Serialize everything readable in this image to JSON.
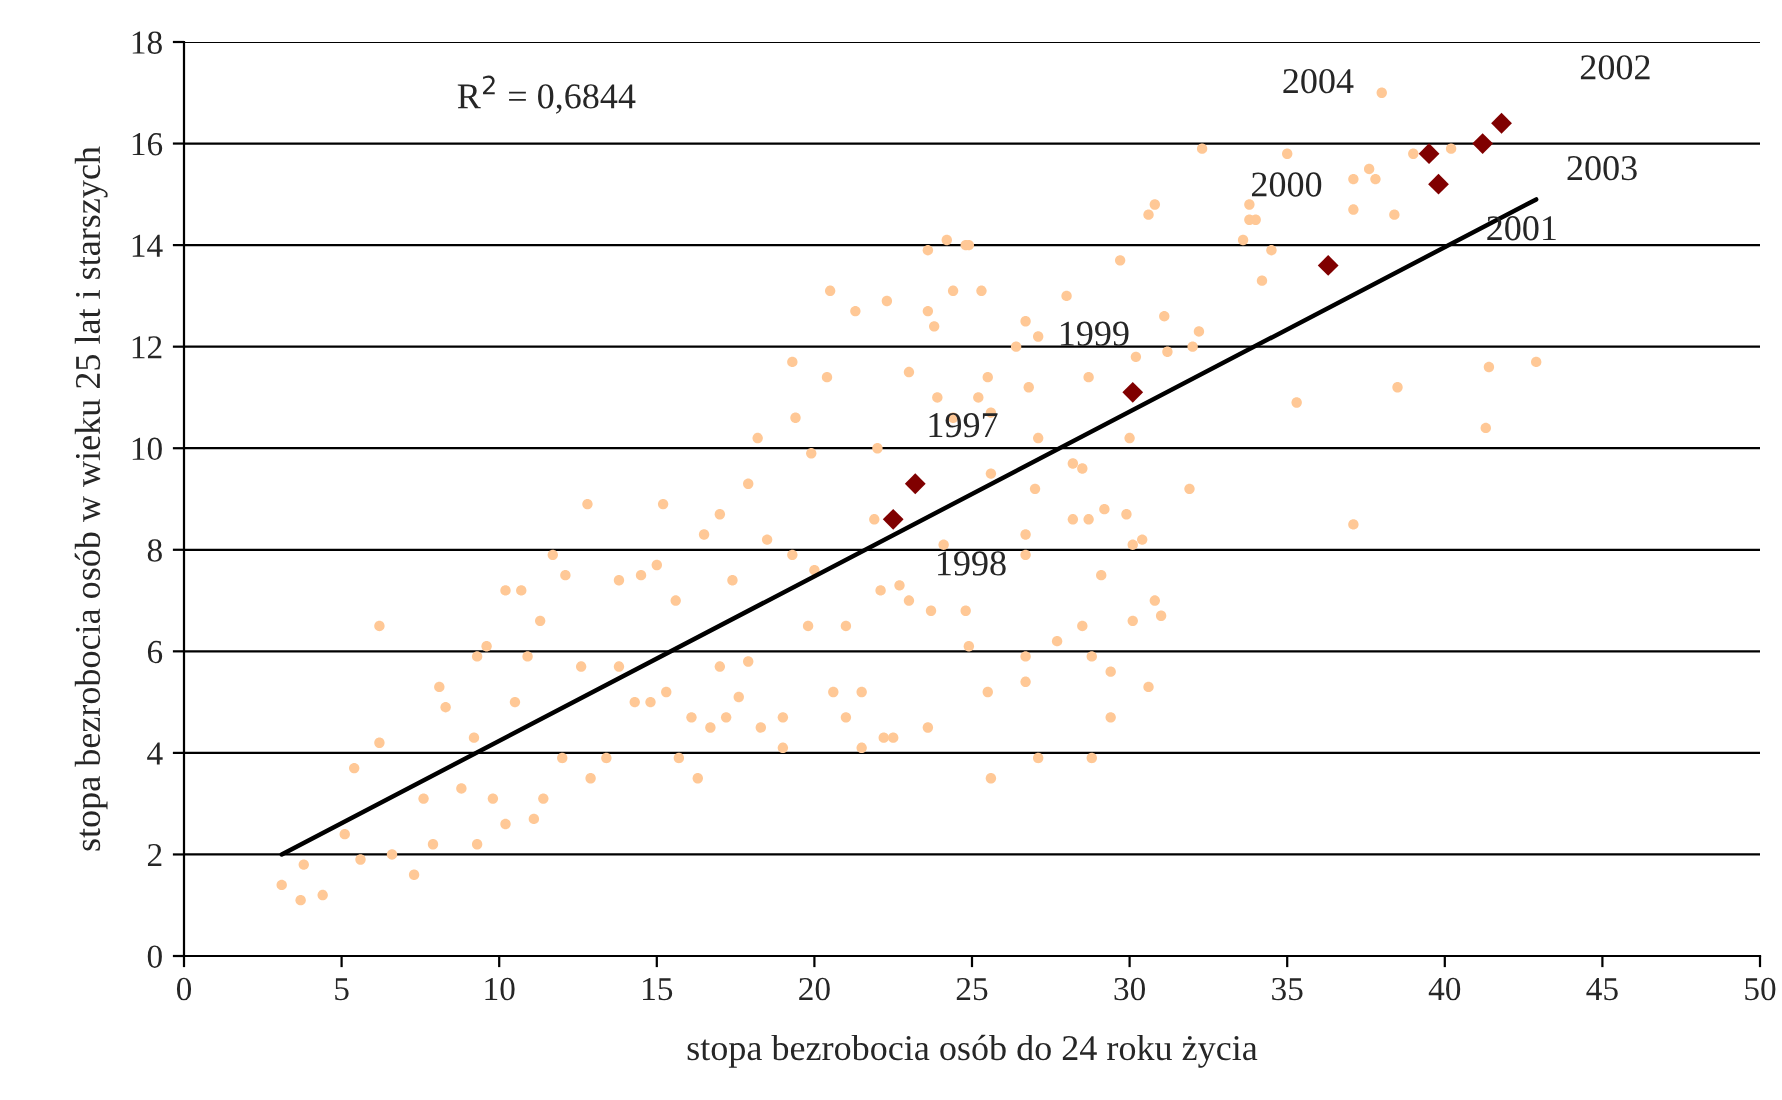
{
  "chart_data": {
    "type": "scatter",
    "xlabel": "stopa bezrobocia osób do 24 roku życia",
    "ylabel": "stopa bezrobocia osób w wieku 25 lat i starszych",
    "xlim": [
      0,
      50
    ],
    "ylim": [
      0,
      18
    ],
    "xticks": [
      0,
      5,
      10,
      15,
      20,
      25,
      30,
      35,
      40,
      45,
      50
    ],
    "yticks": [
      0,
      2,
      4,
      6,
      8,
      10,
      12,
      14,
      16,
      18
    ],
    "grid": "y",
    "legend": false,
    "series": [
      {
        "marker": "circle",
        "color": "#ffc896",
        "x": [
          3.1,
          3.7,
          4.4,
          3.8,
          5.1,
          5.6,
          6.2,
          5.4,
          6.2,
          6.6,
          7.3,
          7.9,
          7.6,
          8.1,
          8.3,
          9.3,
          8.8,
          9.2,
          9.3,
          9.6,
          10.2,
          10.7,
          10.2,
          9.8,
          10.5,
          10.9,
          11.1,
          11.3,
          11.7,
          11.4,
          12.1,
          12.0,
          12.8,
          12.6,
          12.9,
          13.4,
          13.8,
          13.8,
          14.5,
          14.3,
          14.8,
          15.0,
          15.2,
          15.3,
          15.6,
          15.7,
          16.3,
          16.1,
          16.5,
          16.7,
          17.0,
          17.0,
          17.2,
          17.4,
          17.6,
          17.9,
          17.9,
          18.2,
          18.5,
          18.3,
          19.0,
          19.0,
          19.3,
          19.4,
          19.3,
          19.8,
          19.9,
          20.0,
          20.4,
          20.5,
          20.6,
          21.0,
          21.0,
          21.3,
          21.5,
          21.5,
          21.9,
          22.1,
          22.0,
          22.3,
          22.2,
          22.5,
          22.7,
          23.0,
          23.0,
          23.6,
          23.6,
          23.8,
          23.7,
          23.9,
          24.2,
          24.8,
          24.4,
          24.4,
          23.6,
          24.1,
          25.2,
          25.5,
          25.3,
          24.9,
          25.6,
          25.6,
          24.8,
          24.9,
          25.5,
          25.6,
          26.4,
          26.7,
          26.8,
          27.1,
          27.1,
          27.0,
          26.7,
          26.7,
          26.7,
          26.7,
          27.1,
          27.7,
          28.0,
          28.2,
          28.5,
          28.2,
          28.5,
          28.7,
          28.7,
          28.8,
          28.8,
          29.1,
          29.2,
          29.4,
          29.4,
          29.7,
          29.9,
          30.0,
          30.1,
          30.1,
          30.2,
          30.4,
          30.6,
          30.6,
          30.8,
          30.8,
          31.0,
          31.1,
          31.2,
          31.9,
          32.0,
          32.2,
          32.3,
          33.6,
          33.8,
          33.8,
          34.0,
          34.2,
          34.5,
          35.0,
          35.3,
          37.1,
          37.1,
          37.1,
          37.6,
          37.8,
          38.0,
          38.4,
          38.5,
          39.0,
          40.2,
          41.3,
          41.4,
          42.9
        ],
        "values": [
          1.4,
          1.1,
          1.2,
          1.8,
          2.4,
          1.9,
          6.5,
          3.7,
          4.2,
          2.0,
          1.6,
          2.2,
          3.1,
          5.3,
          4.9,
          2.2,
          3.3,
          4.3,
          5.9,
          6.1,
          7.2,
          7.2,
          2.6,
          3.1,
          5.0,
          5.9,
          2.7,
          6.6,
          7.9,
          3.1,
          7.5,
          3.9,
          8.9,
          5.7,
          3.5,
          3.9,
          5.7,
          7.4,
          7.5,
          5.0,
          5.0,
          7.7,
          8.9,
          5.2,
          7.0,
          3.9,
          3.5,
          4.7,
          8.3,
          4.5,
          8.7,
          5.7,
          4.7,
          7.4,
          5.1,
          9.3,
          5.8,
          10.2,
          8.2,
          4.5,
          4.1,
          4.7,
          7.9,
          10.6,
          11.7,
          6.5,
          9.9,
          7.6,
          11.4,
          13.1,
          5.2,
          6.5,
          4.7,
          12.7,
          5.2,
          4.1,
          8.6,
          7.2,
          10.0,
          12.9,
          4.3,
          4.3,
          7.3,
          11.5,
          7.0,
          13.9,
          12.7,
          12.4,
          6.8,
          11.0,
          14.1,
          14.0,
          13.1,
          10.6,
          4.5,
          8.1,
          11.0,
          11.4,
          13.1,
          14.0,
          10.7,
          9.5,
          6.8,
          6.1,
          5.2,
          3.5,
          12.0,
          12.5,
          11.2,
          12.2,
          10.2,
          9.2,
          8.3,
          7.9,
          5.9,
          5.4,
          3.9,
          6.2,
          13.0,
          9.7,
          9.6,
          8.6,
          6.5,
          11.4,
          8.6,
          5.9,
          3.9,
          7.5,
          8.8,
          5.6,
          4.7,
          13.7,
          8.7,
          10.2,
          8.1,
          6.6,
          11.8,
          8.2,
          5.3,
          14.6,
          14.8,
          7.0,
          6.7,
          12.6,
          11.9,
          9.2,
          12.0,
          12.3,
          15.9,
          14.1,
          14.5,
          14.8,
          14.5,
          13.3,
          13.9,
          15.8,
          10.9,
          8.5,
          14.7,
          15.3,
          15.5,
          15.3,
          17.0,
          14.6,
          11.2,
          15.8,
          15.9,
          10.4,
          11.6,
          11.7
        ]
      },
      {
        "marker": "diamond",
        "color": "#800000",
        "x": [
          23.2,
          22.5,
          30.1,
          36.3,
          39.8,
          41.8,
          41.2,
          39.5
        ],
        "values": [
          9.3,
          8.6,
          11.1,
          13.6,
          15.2,
          16.4,
          16.0,
          15.8
        ]
      },
      {
        "type": "line",
        "marker": "none",
        "line_style": "solid",
        "color": "#000000",
        "x": [
          3.1,
          42.9
        ],
        "values": [
          2.0,
          14.9
        ]
      }
    ],
    "annotations": [
      "R$^{2}$ = 0,6844",
      {
        "text": "1997",
        "x": 23.2,
        "y": 9.3
      },
      {
        "text": "1998",
        "x": 22.5,
        "y": 8.6
      },
      {
        "text": "1999",
        "x": 30.1,
        "y": 11.1
      },
      {
        "text": "2000",
        "x": 36.3,
        "y": 13.6
      },
      {
        "text": "2001",
        "x": 39.8,
        "y": 15.2
      },
      {
        "text": "2002",
        "x": 41.8,
        "y": 16.4
      },
      {
        "text": "2003",
        "x": 41.2,
        "y": 16.0
      },
      {
        "text": "2004",
        "x": 39.5,
        "y": 15.8
      }
    ]
  }
}
